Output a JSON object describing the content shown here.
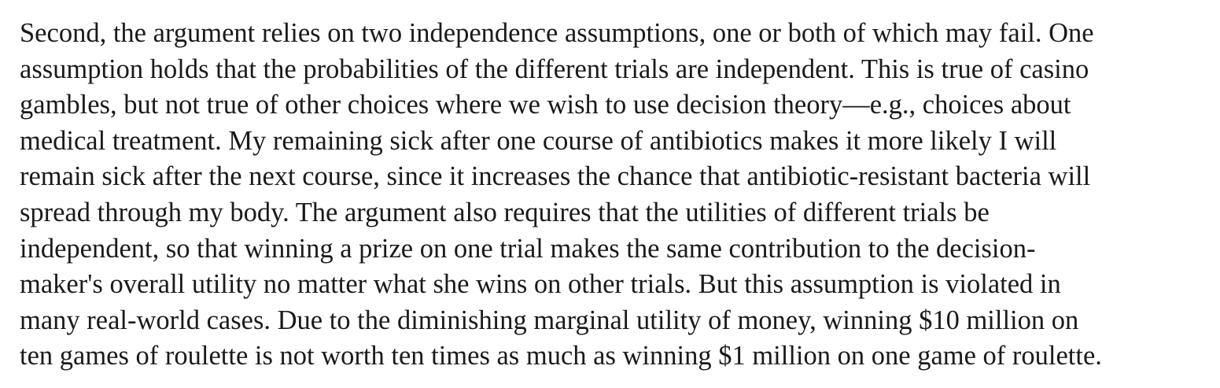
{
  "paragraph": {
    "lines": [
      "Second, the argument relies on two independence assumptions, one or both of which may fail. One",
      "assumption holds that the probabilities of the different trials are independent. This is true of casino",
      "gambles, but not true of other choices where we wish to use decision theory—e.g., choices about",
      "medical treatment. My remaining sick after one course of antibiotics makes it more likely I will",
      "remain sick after the next course, since it increases the chance that antibiotic-resistant bacteria will",
      "spread through my body. The argument also requires that the utilities of different trials be",
      "independent, so that winning a prize on one trial makes the same contribution to the decision-",
      "maker's overall utility no matter what she wins on other trials. But this assumption is violated in",
      "many real-world cases. Due to the diminishing marginal utility of money, winning $10 million on",
      "ten games of roulette is not worth ten times as much as winning $1 million on one game of roulette."
    ]
  }
}
